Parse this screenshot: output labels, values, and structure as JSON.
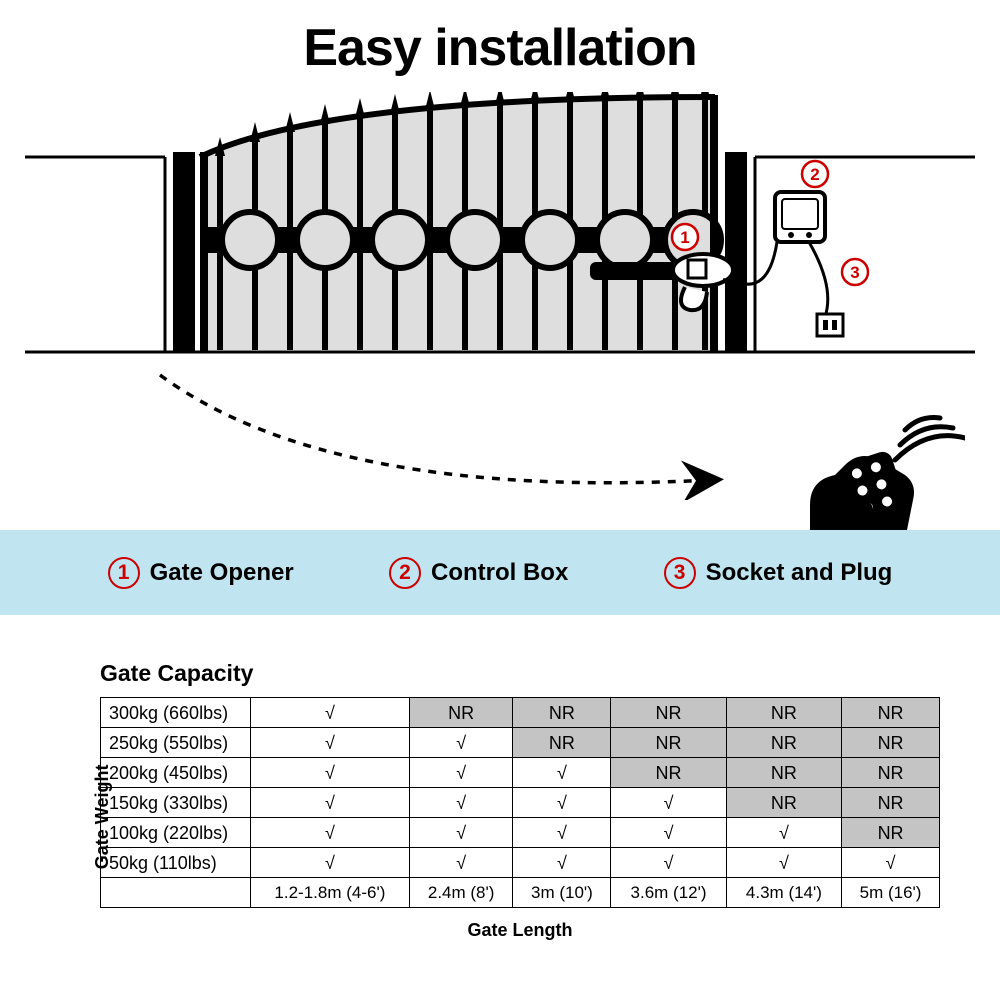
{
  "title": "Easy installation",
  "callouts": {
    "c1": "1",
    "c2": "2",
    "c3": "3"
  },
  "legend": {
    "background_color": "#c0e5f0",
    "number_color": "#cc0000",
    "text_color": "#000000",
    "items": [
      {
        "num": "1",
        "label": "Gate Opener"
      },
      {
        "num": "2",
        "label": "Control Box"
      },
      {
        "num": "3",
        "label": "Socket and Plug"
      }
    ]
  },
  "table": {
    "title": "Gate Capacity",
    "y_label": "Gate Weight",
    "x_label": "Gate Length",
    "check": "√",
    "nr": "NR",
    "nr_bg": "#c4c4c4",
    "border_color": "#000000",
    "fontsize": 18,
    "weights": [
      "300kg (660lbs)",
      "250kg (550lbs)",
      "200kg (450lbs)",
      "150kg (330lbs)",
      "100kg (220lbs)",
      "50kg (110lbs)"
    ],
    "lengths": [
      "1.2-1.8m (4-6')",
      "2.4m (8')",
      "3m (10')",
      "3.6m (12')",
      "4.3m (14')",
      "5m (16')"
    ],
    "grid": [
      [
        "ok",
        "nr",
        "nr",
        "nr",
        "nr",
        "nr"
      ],
      [
        "ok",
        "ok",
        "nr",
        "nr",
        "nr",
        "nr"
      ],
      [
        "ok",
        "ok",
        "ok",
        "nr",
        "nr",
        "nr"
      ],
      [
        "ok",
        "ok",
        "ok",
        "ok",
        "nr",
        "nr"
      ],
      [
        "ok",
        "ok",
        "ok",
        "ok",
        "ok",
        "nr"
      ],
      [
        "ok",
        "ok",
        "ok",
        "ok",
        "ok",
        "ok"
      ]
    ]
  },
  "diagram": {
    "gate_fill": "#dededf",
    "stroke": "#000000",
    "wall_stroke_width": 3,
    "gate_bar_width": 6,
    "callout_circle_stroke": "#cc0000"
  }
}
